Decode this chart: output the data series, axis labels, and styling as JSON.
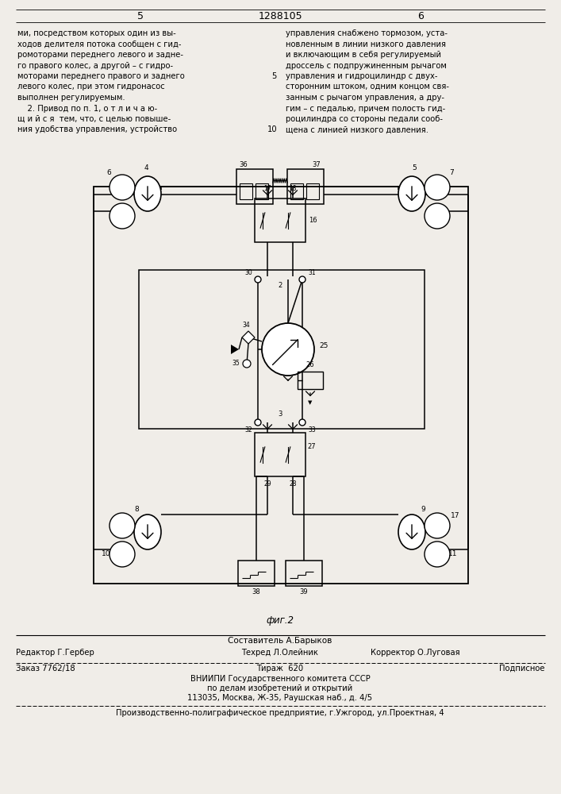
{
  "page_number_left": "5",
  "page_number_center": "1288105",
  "page_number_right": "6",
  "fig_label": "фиг.2",
  "footer_composer": "Составитель А.Барыков",
  "footer_editor": "Редактор Г.Гербер",
  "footer_techred": "Техред Л.Олейник",
  "footer_corrector": "Корректор О.Луговая",
  "footer_order": "Заказ 7762/18",
  "footer_tirazh": "Тираж  620",
  "footer_podpisnoe": "Подписное",
  "footer_vniиpi": "ВНИИПИ Государственного комитета СССР",
  "footer_po_delam": "по делам изобретений и открытий",
  "footer_address": "113035, Москва, Ж-35, Раушская наб., д. 4/5",
  "footer_production": "Производственно-полиграфическое предприятие, г.Ужгород, ул.Проектная, 4",
  "bg_color": "#f0ede8"
}
